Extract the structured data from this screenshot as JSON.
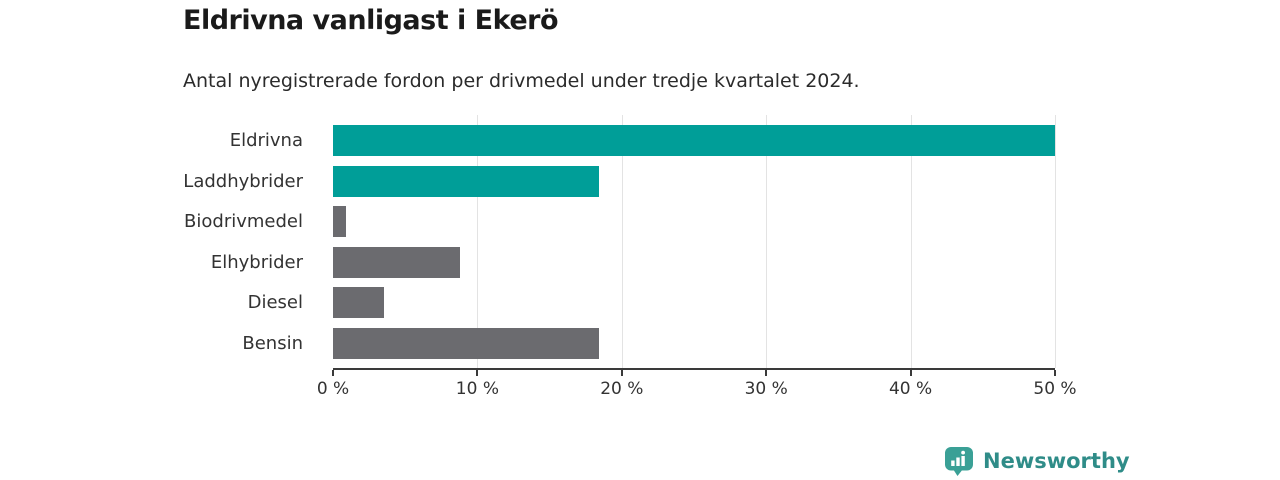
{
  "header": {
    "title": "Eldrivna vanligast i Ekerö",
    "subtitle": "Antal nyregistrerade fordon per drivmedel under tredje kvartalet 2024."
  },
  "chart_data": {
    "type": "bar",
    "orientation": "horizontal",
    "title": "Eldrivna vanligast i Ekerö",
    "subtitle": "Antal nyregistrerade fordon per drivmedel under tredje kvartalet 2024.",
    "categories": [
      "Eldrivna",
      "Laddhybrider",
      "Biodrivmedel",
      "Elhybrider",
      "Diesel",
      "Bensin"
    ],
    "values": [
      50.0,
      18.4,
      0.9,
      8.8,
      3.5,
      18.4
    ],
    "unit": "%",
    "bar_colors": [
      "#009e98",
      "#009e98",
      "#6b6b6f",
      "#6b6b6f",
      "#6b6b6f",
      "#6b6b6f"
    ],
    "xlabel": "",
    "ylabel": "",
    "xlim": [
      0,
      50
    ],
    "xticks": [
      0,
      10,
      20,
      30,
      40,
      50
    ],
    "xtick_labels": [
      "0 %",
      "10 %",
      "20 %",
      "30 %",
      "40 %",
      "50 %"
    ],
    "grid": "vertical-only",
    "legend": false
  },
  "colors": {
    "accent_teal": "#009e98",
    "neutral_gray": "#6b6b6f",
    "gridline": "#e3e3e3",
    "axis": "#3a3a3a",
    "logo_icon": "#3aa096",
    "logo_text": "#2f8c88"
  },
  "footer": {
    "brand": "Newsworthy"
  }
}
